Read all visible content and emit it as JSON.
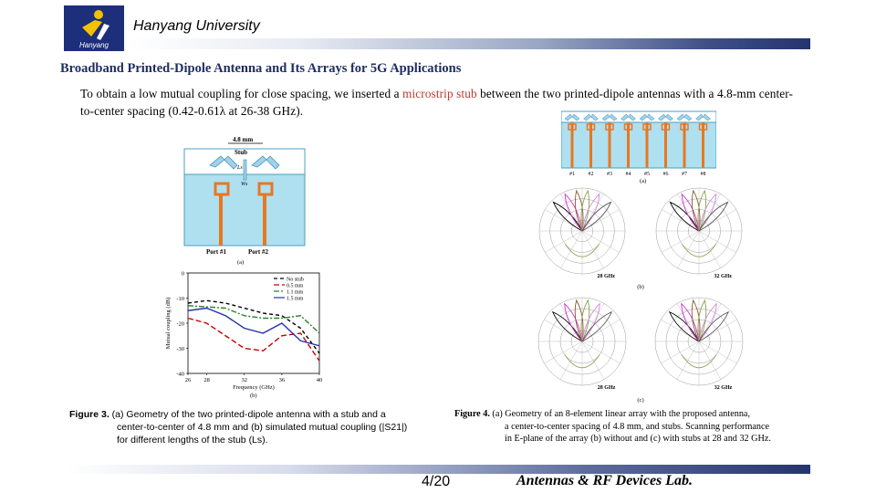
{
  "header": {
    "logo_text": "Hanyang",
    "university": "Hanyang University"
  },
  "slide": {
    "title": "Broadband Printed-Dipole Antenna and Its Arrays for 5G Applications",
    "body_pre": "To obtain a low mutual coupling for close spacing, we inserted a ",
    "body_highlight": "microstrip stub",
    "body_post": " between the two printed-dipole antennas with a 4.8-mm center-to-center spacing (0.42-0.61λ at 26-38 GHz)."
  },
  "figure3": {
    "geometry": {
      "spacing_label": "4.8 mm",
      "stub_label": "Stub",
      "ls_label": "Ls",
      "ws_label": "Ws",
      "port1": "Port #1",
      "port2": "Port #2",
      "sub_label": "(a)"
    },
    "chart_data": {
      "type": "line",
      "xlabel": "Frequency (GHz)",
      "ylabel": "Mutual coupling (dB)",
      "xlim": [
        26,
        40
      ],
      "ylim": [
        -40,
        0
      ],
      "x_ticks": [
        "26",
        "28",
        "32",
        "36",
        "40"
      ],
      "y_ticks": [
        "0",
        "-10",
        "-20",
        "-30",
        "-40"
      ],
      "x": [
        26,
        28,
        30,
        32,
        34,
        36,
        38,
        40
      ],
      "series": [
        {
          "name": "No stub",
          "color": "#000000",
          "dash": "4,3",
          "values": [
            -12,
            -11,
            -12,
            -14,
            -16,
            -17,
            -22,
            -32
          ]
        },
        {
          "name": "0.5 mm",
          "color": "#cc0000",
          "dash": "6,3",
          "values": [
            -18,
            -20,
            -25,
            -30,
            -31,
            -25,
            -24,
            -35
          ]
        },
        {
          "name": "1.1 mm",
          "color": "#2f7d32",
          "dash": "6,2,2,2",
          "values": [
            -13,
            -13.5,
            -14,
            -17,
            -18,
            -18,
            -17,
            -24
          ]
        },
        {
          "name": "1.5 mm",
          "color": "#2233aa",
          "dash": "",
          "values": [
            -15,
            -14,
            -17,
            -22,
            -24,
            -20,
            -27,
            -29
          ]
        }
      ],
      "sub_label": "(b)"
    },
    "caption_label": "Figure 3.",
    "caption_line1": " (a) Geometry of the two printed-dipole antenna with a stub and a",
    "caption_line2": "center-to-center of 4.8 mm and (b) simulated mutual coupling (|S21|)",
    "caption_line3": "for different lengths of the stub (Ls)."
  },
  "figure4": {
    "array": {
      "elements": [
        "#1",
        "#2",
        "#3",
        "#4",
        "#5",
        "#6",
        "#7",
        "#8"
      ],
      "sub_label": "(a)"
    },
    "polar_row_b": {
      "left_label": "28 GHz",
      "right_label": "32 GHz",
      "sub_label": "(b)"
    },
    "polar_row_c": {
      "left_label": "28 GHz",
      "right_label": "32 GHz",
      "sub_label": "(c)"
    },
    "caption_label": "Figure 4.",
    "caption_line1": " (a) Geometry of an 8-element linear array with the proposed antenna,",
    "caption_line2": "a center-to-center spacing of 4.8 mm, and stubs. Scanning performance",
    "caption_line3": "in E-plane of the array (b) without and (c) with stubs at 28 and 32 GHz."
  },
  "footer": {
    "page": "4/20",
    "lab": "Antennas & RF Devices Lab."
  },
  "colors": {
    "title": "#1f2d63",
    "highlight": "#c0392b",
    "bar_dark": "#25346f",
    "substrate": "#aee0f0",
    "dipole": "#e87722"
  }
}
